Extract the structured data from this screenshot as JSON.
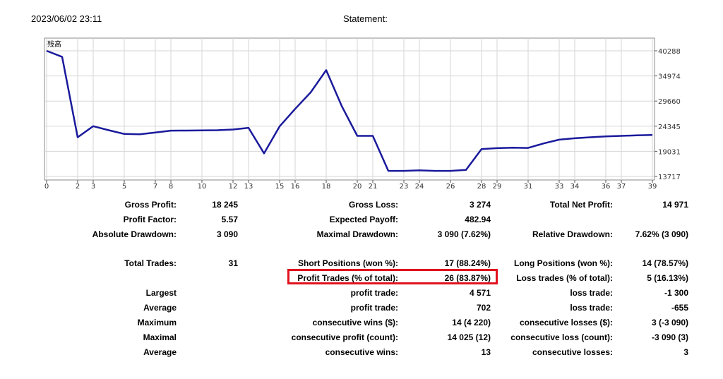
{
  "header": {
    "datetime": "2023/06/02 23:11",
    "title": "Statement:"
  },
  "chart_data": {
    "type": "line",
    "title": "",
    "corner_label": "残高",
    "xlabel": "",
    "ylabel": "",
    "x_ticks": [
      "0",
      "2",
      "3",
      "5",
      "7",
      "8",
      "10",
      "12",
      "13",
      "15",
      "16",
      "18",
      "20",
      "21",
      "23",
      "24",
      "26",
      "28",
      "29",
      "31",
      "33",
      "34",
      "36",
      "37",
      "39"
    ],
    "y_ticks": [
      "13717",
      "19031",
      "24345",
      "29660",
      "34974",
      "40288"
    ],
    "ylim": [
      13717,
      40288
    ],
    "x": [
      0,
      1,
      2,
      3,
      4,
      5,
      6,
      7,
      8,
      9,
      10,
      11,
      12,
      13,
      14,
      15,
      16,
      17,
      18,
      19,
      20,
      21,
      22,
      23,
      24,
      25,
      26,
      27,
      28,
      29,
      30,
      31,
      32,
      33,
      34,
      35,
      36,
      37,
      38,
      39
    ],
    "series": [
      {
        "name": "",
        "color": "#1a1a9c",
        "values": [
          40288,
          39000,
          22000,
          24350,
          23500,
          22700,
          22650,
          23000,
          23400,
          23420,
          23450,
          23500,
          23650,
          24000,
          18600,
          24300,
          28000,
          31500,
          36200,
          28600,
          22300,
          22300,
          14900,
          14900,
          15000,
          14900,
          14900,
          15100,
          19500,
          19700,
          19800,
          19750,
          20700,
          21500,
          21800,
          22000,
          22200,
          22300,
          22400,
          22500
        ]
      }
    ],
    "grid": true,
    "legend": "none"
  },
  "stats": {
    "gross_profit": {
      "label": "Gross Profit:",
      "value": "18 245"
    },
    "gross_loss": {
      "label": "Gross Loss:",
      "value": "3 274"
    },
    "total_net_profit": {
      "label": "Total Net Profit:",
      "value": "14 971"
    },
    "profit_factor": {
      "label": "Profit Factor:",
      "value": "5.57"
    },
    "expected_payoff": {
      "label": "Expected Payoff:",
      "value": "482.94"
    },
    "absolute_drawdown": {
      "label": "Absolute Drawdown:",
      "value": "3 090"
    },
    "maximal_drawdown": {
      "label": "Maximal Drawdown:",
      "value": "3 090 (7.62%)"
    },
    "relative_drawdown": {
      "label": "Relative Drawdown:",
      "value": "7.62% (3 090)"
    },
    "total_trades": {
      "label": "Total Trades:",
      "value": "31"
    },
    "short_positions": {
      "label": "Short Positions (won %):",
      "value": "17 (88.24%)"
    },
    "long_positions": {
      "label": "Long Positions (won %):",
      "value": "14 (78.57%)"
    },
    "profit_trades": {
      "label": "Profit Trades (% of total):",
      "value": "26 (83.87%)"
    },
    "loss_trades": {
      "label": "Loss trades (% of total):",
      "value": "5 (16.13%)"
    },
    "largest": {
      "label": "Largest",
      "profit_label": "profit trade:",
      "profit_value": "4 571",
      "loss_label": "loss trade:",
      "loss_value": "-1 300"
    },
    "average": {
      "label": "Average",
      "profit_label": "profit trade:",
      "profit_value": "702",
      "loss_label": "loss trade:",
      "loss_value": "-655"
    },
    "maximum": {
      "label": "Maximum",
      "wins_label": "consecutive wins ($):",
      "wins_value": "14 (4 220)",
      "losses_label": "consecutive losses ($):",
      "losses_value": "3 (-3 090)"
    },
    "maximal": {
      "label": "Maximal",
      "profit_label": "consecutive profit (count):",
      "profit_value": "14 025 (12)",
      "loss_label": "consecutive loss (count):",
      "loss_value": "-3 090 (3)"
    },
    "average_consec": {
      "label": "Average",
      "wins_label": "consecutive wins:",
      "wins_value": "13",
      "losses_label": "consecutive losses:",
      "losses_value": "3"
    }
  }
}
